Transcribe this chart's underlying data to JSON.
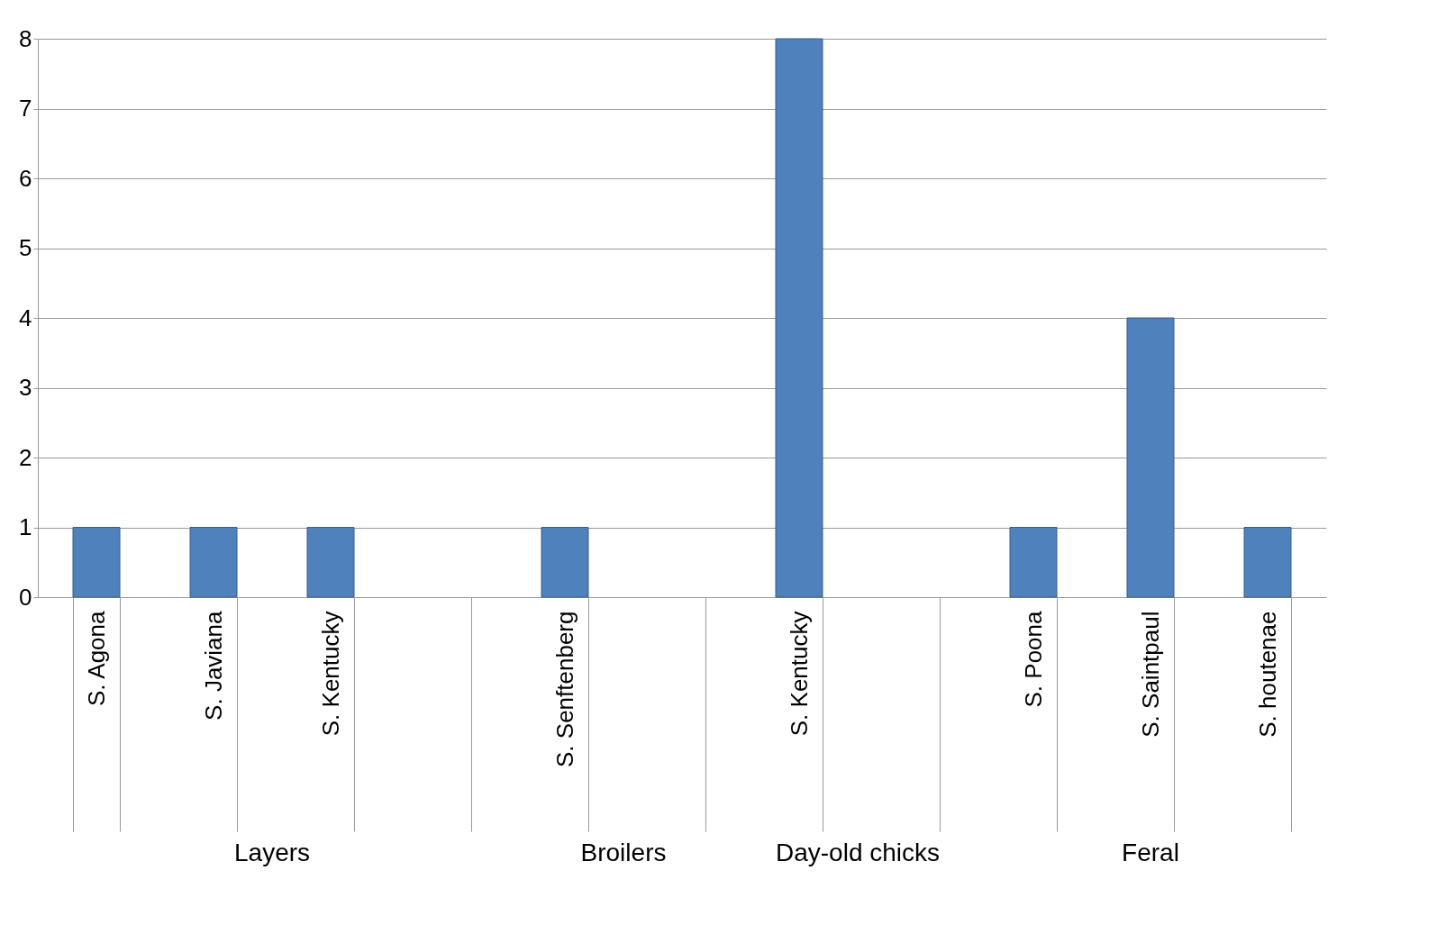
{
  "chart_data": {
    "type": "bar",
    "categories": [
      "S. Agona",
      "S. Javiana",
      "S. Kentucky",
      null,
      "S. Senftenberg",
      null,
      "S. Kentucky",
      null,
      "S. Poona",
      "S. Saintpaul",
      "S. houtenae"
    ],
    "values": [
      1,
      1,
      1,
      null,
      1,
      null,
      8,
      null,
      1,
      4,
      1
    ],
    "color": "#4f81bd",
    "ylim": [
      0,
      8
    ],
    "yticks": [
      0,
      1,
      2,
      3,
      4,
      5,
      6,
      7,
      8
    ],
    "grid": "y",
    "annotations": [
      "Layers",
      "Broilers",
      "Day-old chicks",
      "Feral"
    ]
  }
}
